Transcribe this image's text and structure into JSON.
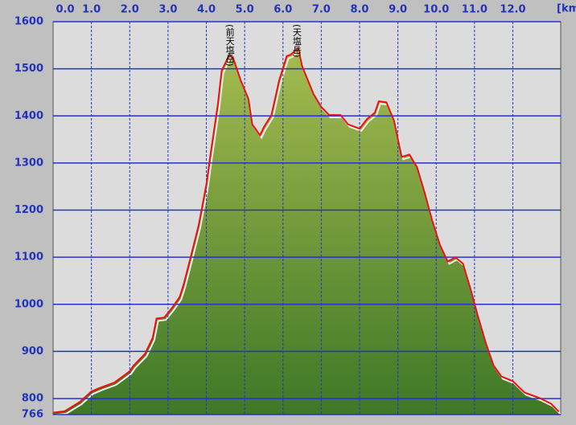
{
  "chart_data": {
    "type": "profile",
    "x_unit": "[km",
    "xlim": [
      0,
      13.25
    ],
    "ylim": [
      766,
      1600
    ],
    "xticks": [
      {
        "value": 0,
        "label": "0.0"
      },
      {
        "value": 1,
        "label": "1.0"
      },
      {
        "value": 2,
        "label": "2.0"
      },
      {
        "value": 3,
        "label": "3.0"
      },
      {
        "value": 4,
        "label": "4.0"
      },
      {
        "value": 5,
        "label": "5.0"
      },
      {
        "value": 6,
        "label": "6.0"
      },
      {
        "value": 7,
        "label": "7.0"
      },
      {
        "value": 8,
        "label": "8.0"
      },
      {
        "value": 9,
        "label": "9.0"
      },
      {
        "value": 10,
        "label": "10.0"
      },
      {
        "value": 11,
        "label": "11.0"
      },
      {
        "value": 12,
        "label": "12.0"
      }
    ],
    "yticks": [
      766,
      800,
      900,
      1000,
      1100,
      1200,
      1300,
      1400,
      1500,
      1600
    ],
    "grid": true,
    "color": "#ee1111",
    "fill_top": "#a6bb50",
    "fill_bottom": "#3e7826",
    "x": [
      0,
      0.3,
      0.7,
      1.0,
      1.2,
      1.6,
      2.0,
      2.1,
      2.4,
      2.6,
      2.7,
      2.9,
      3.1,
      3.3,
      3.4,
      3.6,
      3.8,
      4.0,
      4.1,
      4.3,
      4.4,
      4.6,
      4.7,
      4.9,
      5.1,
      5.2,
      5.4,
      5.5,
      5.7,
      5.9,
      6.1,
      6.2,
      6.4,
      6.5,
      6.8,
      7.0,
      7.2,
      7.5,
      7.7,
      8.0,
      8.2,
      8.4,
      8.5,
      8.7,
      8.9,
      9.1,
      9.3,
      9.5,
      9.7,
      9.9,
      10.1,
      10.3,
      10.5,
      10.7,
      10.9,
      11.1,
      11.3,
      11.5,
      11.7,
      12.0,
      12.3,
      12.7,
      13.0,
      13.2
    ],
    "values": [
      770,
      773,
      793,
      815,
      822,
      834,
      858,
      870,
      895,
      929,
      970,
      972,
      992,
      1015,
      1040,
      1103,
      1168,
      1254,
      1313,
      1424,
      1496,
      1530,
      1523,
      1475,
      1436,
      1382,
      1359,
      1376,
      1402,
      1475,
      1527,
      1530,
      1544,
      1506,
      1446,
      1419,
      1402,
      1402,
      1382,
      1373,
      1394,
      1407,
      1431,
      1429,
      1390,
      1313,
      1318,
      1291,
      1237,
      1177,
      1126,
      1091,
      1100,
      1086,
      1032,
      972,
      917,
      870,
      847,
      837,
      813,
      801,
      789,
      772
    ],
    "annotations": [
      {
        "text": "(前天塩岳)",
        "x": 4.6
      },
      {
        "text": "(天塩岳)",
        "x": 6.35
      }
    ]
  }
}
